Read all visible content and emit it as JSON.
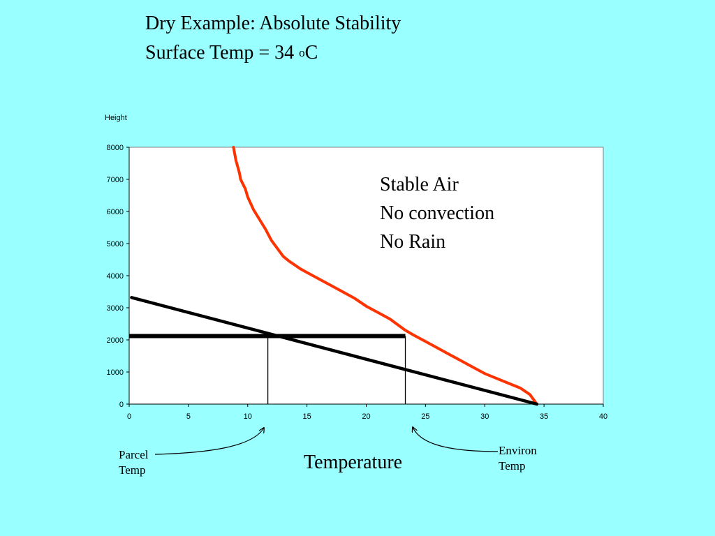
{
  "slide": {
    "title_line1": "Dry Example: Absolute Stability",
    "title_line2_prefix": "Surface Temp = 34 ",
    "title_line2_sup": "o",
    "title_line2_suffix": "C"
  },
  "annotation": {
    "lines": [
      "Stable Air",
      "No convection",
      "No Rain"
    ]
  },
  "callouts": {
    "parcel": [
      "Parcel",
      "Temp"
    ],
    "environ": [
      "Environ",
      "Temp"
    ]
  },
  "chart_data": {
    "type": "line",
    "ylabel": "Height",
    "xlabel": "Temperature",
    "xlim": [
      0,
      40
    ],
    "ylim": [
      0,
      8000
    ],
    "xticks": [
      0,
      5,
      10,
      15,
      20,
      25,
      30,
      35,
      40
    ],
    "yticks": [
      0,
      1000,
      2000,
      3000,
      4000,
      5000,
      6000,
      7000,
      8000
    ],
    "grid": false,
    "colors": {
      "environ": "#FF3300",
      "parcel": "#000000",
      "plot_bg": "#FFFFFF",
      "slide_bg": "#99FFFF"
    },
    "series": [
      {
        "key": "environ",
        "x": [
          34.4,
          33.8,
          33.0,
          32.0,
          31.0,
          30.0,
          29.0,
          28.0,
          27.0,
          26.0,
          25.0,
          24.0,
          23.3,
          22.0,
          21.0,
          20.0,
          19.0,
          18.0,
          17.0,
          16.0,
          15.0,
          14.5,
          13.5,
          13.0,
          12.5,
          12.0,
          11.5,
          11.0,
          10.5,
          10.0,
          9.8,
          9.4,
          9.3,
          9.0,
          8.8
        ],
        "y": [
          0,
          300,
          500,
          650,
          800,
          950,
          1150,
          1350,
          1550,
          1750,
          1950,
          2150,
          2300,
          2650,
          2850,
          3050,
          3300,
          3500,
          3700,
          3900,
          4100,
          4200,
          4450,
          4600,
          4850,
          5100,
          5450,
          5750,
          6050,
          6450,
          6700,
          7000,
          7200,
          7600,
          8000
        ]
      },
      {
        "key": "parcel",
        "x": [
          34.4,
          0.2
        ],
        "y": [
          0,
          3320
        ]
      }
    ],
    "reference_lines": {
      "level_height": 2120,
      "level_x_range": [
        0,
        23.3
      ],
      "parcel_temp_x": 11.7,
      "environ_temp_x": 23.3
    }
  }
}
